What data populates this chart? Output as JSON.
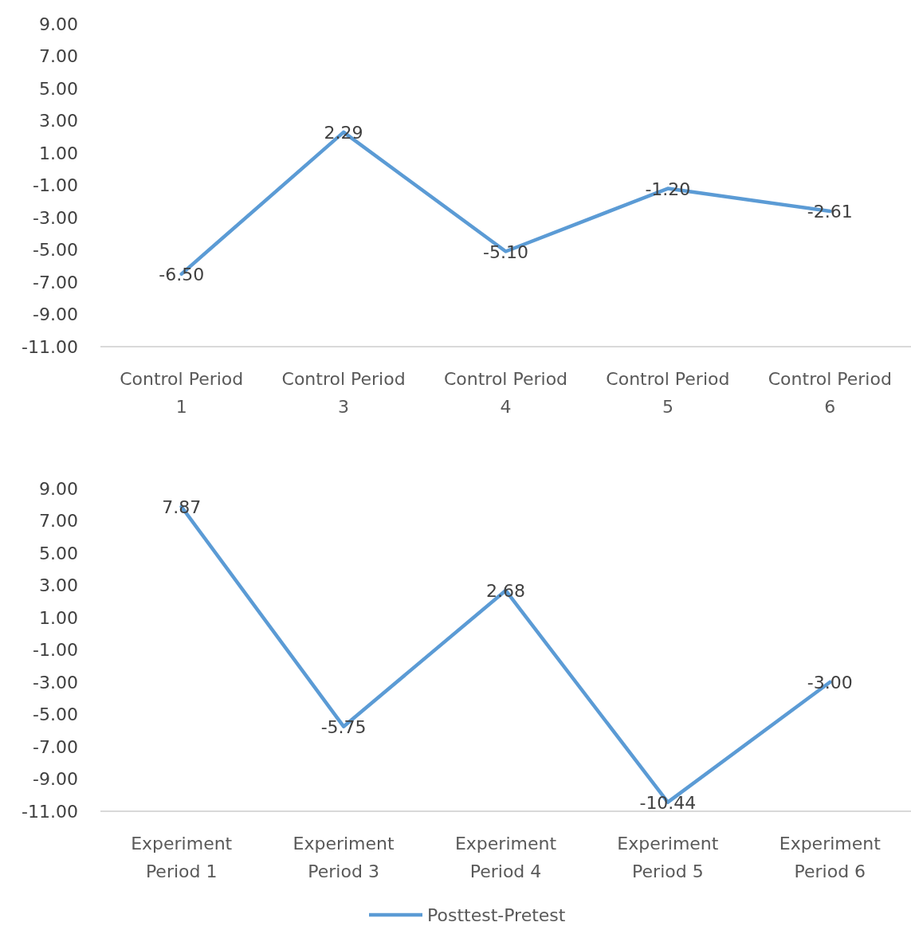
{
  "chart_data": [
    {
      "type": "line",
      "categories": [
        "Control Period 1",
        "Control Period 3",
        "Control Period 4",
        "Control Period 5",
        "Control Period 6"
      ],
      "series": [
        {
          "color": "#5b9bd5",
          "values": [
            -6.5,
            2.29,
            -5.1,
            -1.2,
            -2.61
          ]
        }
      ],
      "ylim": [
        -11,
        9
      ],
      "yticks": [
        {
          "value": 9,
          "label": "9.00"
        },
        {
          "value": 7,
          "label": "7.00"
        },
        {
          "value": 5,
          "label": "5.00"
        },
        {
          "value": 3,
          "label": "3.00"
        },
        {
          "value": 1,
          "label": "1.00"
        },
        {
          "value": -1,
          "label": "-1.00"
        },
        {
          "value": -3,
          "label": "-3.00"
        },
        {
          "value": -5,
          "label": "-5.00"
        },
        {
          "value": -7,
          "label": "-7.00"
        },
        {
          "value": -9,
          "label": "-9.00"
        },
        {
          "value": -11,
          "label": "-11.00"
        }
      ],
      "value_labels": [
        [
          "-6.50",
          "2.29",
          "-5.10",
          "-1.20",
          "-2.61"
        ]
      ],
      "grid": false,
      "legend": false,
      "marker": "none"
    },
    {
      "type": "line",
      "categories": [
        "Experiment Period 1",
        "Experiment Period 3",
        "Experiment Period 4",
        "Experiment Period 5",
        "Experiment Period 6"
      ],
      "series": [
        {
          "name": "Posttest-Pretest",
          "color": "#5b9bd5",
          "values": [
            7.87,
            -5.75,
            2.68,
            -10.44,
            -3.0
          ]
        }
      ],
      "ylim": [
        -11,
        9
      ],
      "yticks": [
        {
          "value": 9,
          "label": "9.00"
        },
        {
          "value": 7,
          "label": "7.00"
        },
        {
          "value": 5,
          "label": "5.00"
        },
        {
          "value": 3,
          "label": "3.00"
        },
        {
          "value": 1,
          "label": "1.00"
        },
        {
          "value": -1,
          "label": "-1.00"
        },
        {
          "value": -3,
          "label": "-3.00"
        },
        {
          "value": -5,
          "label": "-5.00"
        },
        {
          "value": -7,
          "label": "-7.00"
        },
        {
          "value": -9,
          "label": "-9.00"
        },
        {
          "value": -11,
          "label": "-11.00"
        }
      ],
      "value_labels": [
        [
          "7.87",
          "-5.75",
          "2.68",
          "-10.44",
          "-3.00"
        ]
      ],
      "grid": false,
      "legend": "bottom",
      "marker": "none"
    }
  ]
}
